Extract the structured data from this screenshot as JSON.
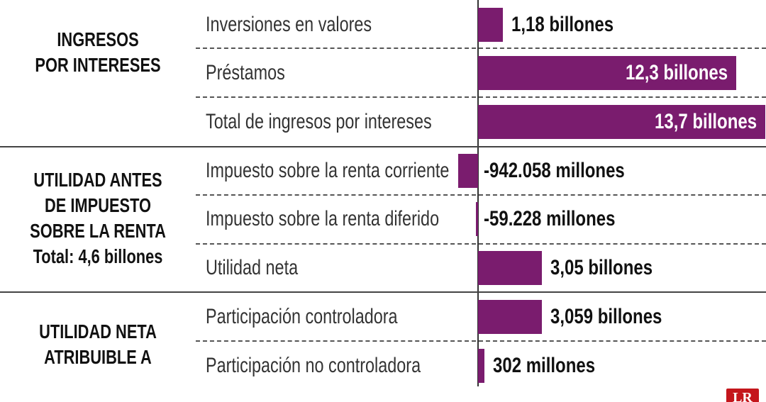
{
  "chart_data": {
    "type": "bar",
    "orientation": "horizontal",
    "bar_color": "#7a1c6e",
    "unit": "millones",
    "sections": [
      {
        "title": [
          "INGRESOS",
          "POR INTERESES"
        ],
        "rows": [
          0,
          1,
          2
        ]
      },
      {
        "title": [
          "UTILIDAD ANTES",
          "DE IMPUESTO",
          "SOBRE LA RENTA",
          "Total: 4,6 billones"
        ],
        "rows": [
          3,
          4,
          5
        ]
      },
      {
        "title": [
          "UTILIDAD NETA",
          "ATRIBUIBLE A"
        ],
        "rows": [
          6,
          7
        ]
      }
    ],
    "categories": [
      "Inversiones en valores",
      "Préstamos",
      "Total de ingresos por intereses",
      "Impuesto sobre la renta corriente",
      "Impuesto sobre la renta diferido",
      "Utilidad neta",
      "Participación controladora",
      "Participación no controladora"
    ],
    "values": [
      1180000,
      12300000,
      13700000,
      -942058,
      -59228,
      3050000,
      3059000,
      302000
    ],
    "value_labels": [
      "1,18 billones",
      "12,3 billones",
      "13,7 billones",
      "-942.058 millones",
      "-59.228 millones",
      "3,05 billones",
      "3,059 billones",
      "302 millones"
    ],
    "label_inside": [
      false,
      true,
      true,
      false,
      false,
      false,
      false,
      false
    ]
  },
  "logo_text": "LR"
}
